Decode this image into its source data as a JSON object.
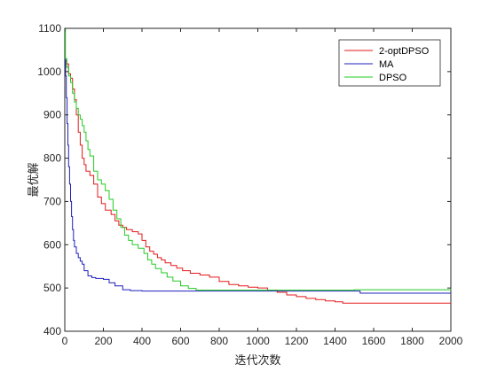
{
  "chart_data": {
    "type": "line",
    "title": "",
    "xlabel": "迭代次数",
    "ylabel": "最优解",
    "xlim": [
      0,
      2000
    ],
    "ylim": [
      400,
      1100
    ],
    "x_ticks": [
      0,
      200,
      400,
      600,
      800,
      1000,
      1200,
      1400,
      1600,
      1800,
      2000
    ],
    "y_ticks": [
      400,
      500,
      600,
      700,
      800,
      900,
      1000,
      1100
    ],
    "grid": false,
    "legend_position": "top-right",
    "series": [
      {
        "name": "2-optDPSO",
        "color": "#e31a1c",
        "points": [
          [
            0,
            1025
          ],
          [
            10,
            1018
          ],
          [
            20,
            995
          ],
          [
            30,
            985
          ],
          [
            40,
            960
          ],
          [
            50,
            935
          ],
          [
            60,
            900
          ],
          [
            70,
            860
          ],
          [
            80,
            830
          ],
          [
            90,
            800
          ],
          [
            100,
            785
          ],
          [
            110,
            770
          ],
          [
            130,
            760
          ],
          [
            150,
            740
          ],
          [
            170,
            710
          ],
          [
            190,
            695
          ],
          [
            210,
            680
          ],
          [
            240,
            670
          ],
          [
            260,
            655
          ],
          [
            280,
            645
          ],
          [
            300,
            640
          ],
          [
            320,
            635
          ],
          [
            350,
            630
          ],
          [
            380,
            625
          ],
          [
            400,
            610
          ],
          [
            420,
            595
          ],
          [
            440,
            585
          ],
          [
            460,
            578
          ],
          [
            480,
            570
          ],
          [
            500,
            565
          ],
          [
            520,
            558
          ],
          [
            550,
            552
          ],
          [
            580,
            546
          ],
          [
            610,
            540
          ],
          [
            650,
            534
          ],
          [
            700,
            530
          ],
          [
            750,
            525
          ],
          [
            800,
            515
          ],
          [
            850,
            508
          ],
          [
            900,
            505
          ],
          [
            950,
            502
          ],
          [
            1000,
            500
          ],
          [
            1050,
            495
          ],
          [
            1100,
            490
          ],
          [
            1150,
            484
          ],
          [
            1200,
            480
          ],
          [
            1250,
            476
          ],
          [
            1300,
            473
          ],
          [
            1350,
            470
          ],
          [
            1400,
            468
          ],
          [
            1440,
            465
          ],
          [
            2000,
            465
          ]
        ]
      },
      {
        "name": "MA",
        "color": "#1f1fbf",
        "points": [
          [
            0,
            1030
          ],
          [
            4,
            990
          ],
          [
            8,
            940
          ],
          [
            12,
            880
          ],
          [
            16,
            830
          ],
          [
            20,
            780
          ],
          [
            25,
            740
          ],
          [
            30,
            700
          ],
          [
            35,
            665
          ],
          [
            40,
            635
          ],
          [
            45,
            610
          ],
          [
            50,
            595
          ],
          [
            60,
            580
          ],
          [
            70,
            570
          ],
          [
            80,
            562
          ],
          [
            90,
            555
          ],
          [
            100,
            540
          ],
          [
            120,
            528
          ],
          [
            140,
            524
          ],
          [
            160,
            522
          ],
          [
            200,
            520
          ],
          [
            230,
            512
          ],
          [
            260,
            505
          ],
          [
            300,
            496
          ],
          [
            340,
            494
          ],
          [
            400,
            493
          ],
          [
            600,
            493
          ],
          [
            1000,
            493
          ],
          [
            1500,
            493
          ],
          [
            1530,
            488
          ],
          [
            2000,
            488
          ]
        ]
      },
      {
        "name": "DPSO",
        "color": "#22cc22",
        "points": [
          [
            0,
            1100
          ],
          [
            3,
            1030
          ],
          [
            10,
            1010
          ],
          [
            20,
            990
          ],
          [
            30,
            975
          ],
          [
            40,
            950
          ],
          [
            50,
            930
          ],
          [
            60,
            915
          ],
          [
            70,
            900
          ],
          [
            80,
            890
          ],
          [
            90,
            875
          ],
          [
            100,
            860
          ],
          [
            110,
            840
          ],
          [
            120,
            820
          ],
          [
            130,
            805
          ],
          [
            150,
            770
          ],
          [
            170,
            750
          ],
          [
            190,
            740
          ],
          [
            210,
            725
          ],
          [
            230,
            705
          ],
          [
            250,
            680
          ],
          [
            270,
            660
          ],
          [
            290,
            640
          ],
          [
            310,
            622
          ],
          [
            330,
            610
          ],
          [
            350,
            600
          ],
          [
            380,
            592
          ],
          [
            410,
            580
          ],
          [
            430,
            565
          ],
          [
            450,
            555
          ],
          [
            470,
            545
          ],
          [
            500,
            535
          ],
          [
            530,
            525
          ],
          [
            560,
            516
          ],
          [
            600,
            505
          ],
          [
            640,
            499
          ],
          [
            680,
            495
          ],
          [
            800,
            495
          ],
          [
            1000,
            495
          ],
          [
            1500,
            496
          ],
          [
            2000,
            497
          ]
        ]
      }
    ]
  }
}
